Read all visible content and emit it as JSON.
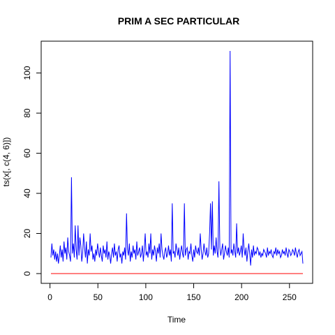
{
  "chart_data": {
    "type": "line",
    "title": "PRIM A SEC PARTICULAR",
    "xlabel": "Time",
    "ylabel": "ts(x[, c(4, 6)])",
    "xlim": [
      1,
      264
    ],
    "ylim": [
      0,
      111
    ],
    "x_ticks": [
      0,
      50,
      100,
      150,
      200,
      250
    ],
    "y_ticks": [
      0,
      20,
      40,
      60,
      80,
      100
    ],
    "grid": false,
    "legend": "none",
    "series": [
      {
        "color": "#0000ff",
        "values": [
          8,
          15,
          9,
          12,
          7,
          11,
          6,
          10,
          5,
          9,
          14,
          8,
          12,
          6,
          16,
          10,
          13,
          7,
          18,
          11,
          9,
          6,
          48,
          10,
          15,
          8,
          24,
          12,
          7,
          24,
          9,
          18,
          14,
          6,
          10,
          20,
          13,
          8,
          16,
          5,
          12,
          9,
          20,
          11,
          14,
          7,
          10,
          6,
          12,
          9,
          15,
          11,
          8,
          13,
          9,
          6,
          14,
          10,
          12,
          8,
          16,
          7,
          11,
          9,
          5,
          10,
          13,
          8,
          15,
          9,
          11,
          6,
          12,
          14,
          8,
          10,
          5,
          11,
          9,
          13,
          7,
          30,
          12,
          9,
          15,
          6,
          11,
          8,
          14,
          10,
          12,
          7,
          16,
          9,
          11,
          13,
          8,
          10,
          14,
          6,
          12,
          20,
          9,
          11,
          8,
          15,
          10,
          20,
          7,
          12,
          9,
          14,
          11,
          6,
          13,
          10,
          15,
          8,
          20,
          12,
          9,
          7,
          11,
          13,
          8,
          10,
          14,
          9,
          12,
          6,
          35,
          10,
          11,
          8,
          15,
          12,
          9,
          13,
          7,
          11,
          14,
          10,
          8,
          35,
          9,
          12,
          13,
          7,
          11,
          10,
          15,
          9,
          6,
          12,
          8,
          14,
          11,
          10,
          13,
          9,
          20,
          12,
          7,
          10,
          15,
          11,
          9,
          13,
          8,
          10,
          20,
          35,
          12,
          36,
          9,
          14,
          10,
          18,
          11,
          8,
          46,
          13,
          9,
          12,
          15,
          7,
          10,
          14,
          11,
          9,
          13,
          8,
          111,
          10,
          12,
          9,
          15,
          11,
          8,
          25,
          10,
          13,
          9,
          11,
          14,
          8,
          20,
          12,
          9,
          13,
          6,
          11,
          15,
          10,
          4,
          12,
          8,
          14,
          9,
          11,
          10,
          13,
          12,
          9,
          11,
          8,
          10,
          9,
          12,
          11,
          10,
          8,
          13,
          9,
          11,
          10,
          12,
          9,
          8,
          11,
          10,
          13,
          9,
          12,
          10,
          11,
          8,
          9,
          12,
          10,
          11,
          9,
          13,
          10,
          8,
          12,
          11,
          9,
          10,
          12,
          11,
          9,
          13,
          10,
          8,
          11,
          12,
          9,
          10,
          11,
          5
        ]
      },
      {
        "color": "#ff0000",
        "values": [
          0,
          0
        ]
      }
    ]
  }
}
